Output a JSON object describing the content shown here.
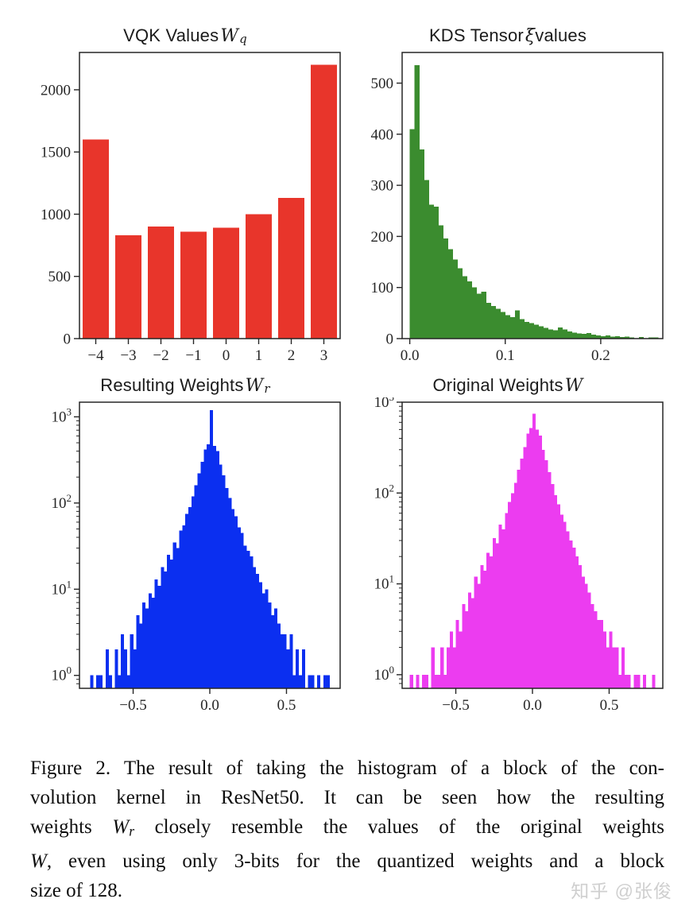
{
  "watermark": {
    "text": "知乎 @张俊"
  },
  "caption": {
    "lines": [
      {
        "parts": [
          {
            "text": "Figure 2. The result of taking the histogram of a block of the con-"
          }
        ]
      },
      {
        "parts": [
          {
            "text": "volution kernel in ResNet50.  It can be seen how the resulting"
          }
        ]
      },
      {
        "parts": [
          {
            "text": "weights "
          },
          {
            "text": "W",
            "style": "math"
          },
          {
            "text": "r",
            "style": "sub"
          },
          {
            "text": " closely resemble the values of the original weights"
          }
        ]
      },
      {
        "parts": [
          {
            "text": "W",
            "style": "math"
          },
          {
            "text": ", even using only 3-bits for the quantized weights and a block"
          }
        ]
      },
      {
        "parts": [
          {
            "text": "size of 128."
          }
        ],
        "last": true
      }
    ]
  },
  "chart_data": [
    {
      "name": "vqk-values",
      "type": "bar",
      "title_parts": [
        {
          "text": "VQK Values "
        },
        {
          "text": "W",
          "style": "math"
        },
        {
          "text": "q",
          "style": "sub"
        }
      ],
      "color": "#e8352b",
      "categories": [
        "−4",
        "−3",
        "−2",
        "−1",
        "0",
        "1",
        "2",
        "3"
      ],
      "values": [
        1600,
        830,
        900,
        860,
        890,
        1000,
        1130,
        2200
      ],
      "ylim": [
        0,
        2300
      ],
      "yticks": [
        {
          "v": 0,
          "label": "0"
        },
        {
          "v": 500,
          "label": "500"
        },
        {
          "v": 1000,
          "label": "1000"
        },
        {
          "v": 1500,
          "label": "1500"
        },
        {
          "v": 2000,
          "label": "2000"
        }
      ]
    },
    {
      "name": "kds-tensor-values",
      "type": "histogram",
      "yscale": "linear",
      "title_parts": [
        {
          "text": "KDS Tensor "
        },
        {
          "text": "ξ",
          "style": "math"
        },
        {
          "text": " values"
        }
      ],
      "color": "#3b8c2f",
      "bin_start": 0.0,
      "bin_width": 0.005,
      "values": [
        410,
        535,
        370,
        310,
        262,
        258,
        222,
        196,
        175,
        155,
        138,
        122,
        112,
        100,
        88,
        92,
        70,
        64,
        58,
        52,
        46,
        42,
        55,
        38,
        33,
        30,
        27,
        24,
        21,
        18,
        16,
        22,
        18,
        14,
        12,
        10,
        9,
        11,
        8,
        6,
        5,
        6,
        4,
        5,
        3,
        4,
        2,
        0,
        3,
        0,
        2,
        2
      ],
      "xlim": [
        -0.008,
        0.265
      ],
      "ylim": [
        0,
        560
      ],
      "xticks": [
        {
          "v": 0.0,
          "label": "0.0"
        },
        {
          "v": 0.1,
          "label": "0.1"
        },
        {
          "v": 0.2,
          "label": "0.2"
        }
      ],
      "yticks": [
        {
          "v": 0,
          "label": "0"
        },
        {
          "v": 100,
          "label": "100"
        },
        {
          "v": 200,
          "label": "200"
        },
        {
          "v": 300,
          "label": "300"
        },
        {
          "v": 400,
          "label": "400"
        },
        {
          "v": 500,
          "label": "500"
        }
      ]
    },
    {
      "name": "resulting-weights",
      "type": "histogram",
      "yscale": "log",
      "title_parts": [
        {
          "text": "Resulting Weights "
        },
        {
          "text": "W",
          "style": "math"
        },
        {
          "text": "r",
          "style": "sub"
        }
      ],
      "color": "#0b2ff0",
      "bin_start": -0.8,
      "bin_width": 0.02,
      "values": [
        0,
        1,
        0,
        1,
        1,
        0,
        2,
        1,
        0,
        2,
        1,
        3,
        2,
        1,
        3,
        2,
        5,
        4,
        7,
        6,
        9,
        8,
        13,
        11,
        18,
        16,
        25,
        22,
        35,
        30,
        48,
        55,
        75,
        90,
        120,
        160,
        220,
        300,
        420,
        480,
        1200,
        460,
        400,
        280,
        210,
        150,
        115,
        85,
        70,
        52,
        45,
        32,
        28,
        24,
        18,
        15,
        12,
        9,
        10,
        7,
        5,
        6,
        4,
        3,
        3,
        2,
        3,
        1,
        2,
        1,
        2,
        0,
        1,
        1,
        0,
        1,
        0,
        1,
        1,
        0
      ],
      "xlim": [
        -0.85,
        0.85
      ],
      "ylim_exp": [
        -0.15,
        3.17
      ],
      "xticks": [
        {
          "v": -0.5,
          "label": "−0.5"
        },
        {
          "v": 0.0,
          "label": "0.0"
        },
        {
          "v": 0.5,
          "label": "0.5"
        }
      ],
      "yticks_exp": [
        0,
        1,
        2,
        3
      ]
    },
    {
      "name": "original-weights",
      "type": "histogram",
      "yscale": "log",
      "title_parts": [
        {
          "text": "Original Weights "
        },
        {
          "text": "W",
          "style": "math"
        }
      ],
      "color": "#ec3cf0",
      "bin_start": -0.8,
      "bin_width": 0.02,
      "values": [
        1,
        0,
        1,
        0,
        1,
        1,
        0,
        2,
        1,
        1,
        2,
        1,
        2,
        3,
        2,
        4,
        3,
        6,
        5,
        8,
        7,
        12,
        10,
        16,
        14,
        22,
        20,
        32,
        28,
        45,
        40,
        60,
        80,
        100,
        130,
        180,
        240,
        320,
        450,
        520,
        750,
        500,
        430,
        300,
        230,
        170,
        125,
        95,
        75,
        58,
        48,
        38,
        30,
        25,
        20,
        16,
        12,
        10,
        8,
        6,
        5,
        4,
        4,
        3,
        2,
        3,
        2,
        2,
        1,
        2,
        1,
        1,
        0,
        1,
        1,
        0,
        1,
        0,
        0,
        1
      ],
      "xlim": [
        -0.85,
        0.85
      ],
      "ylim_exp": [
        -0.15,
        3.0
      ],
      "xticks": [
        {
          "v": -0.5,
          "label": "−0.5"
        },
        {
          "v": 0.0,
          "label": "0.0"
        },
        {
          "v": 0.5,
          "label": "0.5"
        }
      ],
      "yticks_exp": [
        0,
        1,
        2,
        3
      ]
    }
  ]
}
